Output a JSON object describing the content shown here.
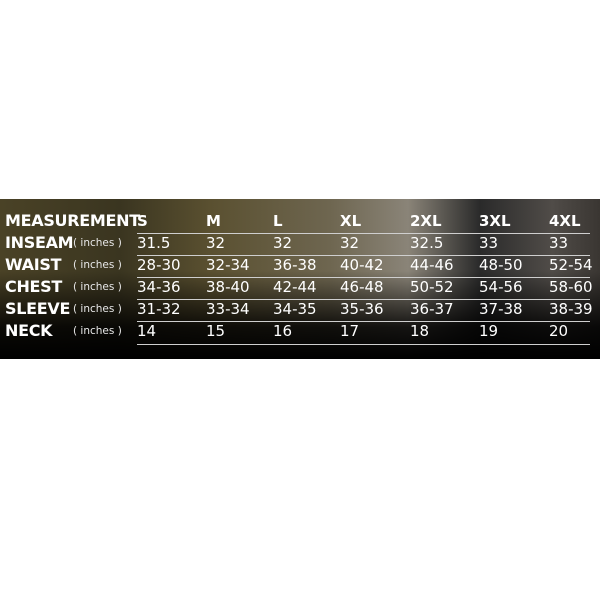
{
  "header": {
    "label": "MEASUREMENT",
    "sizes": [
      "S",
      "M",
      "L",
      "XL",
      "2XL",
      "3XL",
      "4XL"
    ]
  },
  "rows": [
    {
      "label": "INSEAM",
      "unit": "( inches )",
      "values": [
        "31.5",
        "32",
        "32",
        "32",
        "32.5",
        "33",
        "33"
      ]
    },
    {
      "label": "WAIST",
      "unit": "( inches )",
      "values": [
        "28-30",
        "32-34",
        "36-38",
        "40-42",
        "44-46",
        "48-50",
        "52-54"
      ]
    },
    {
      "label": "CHEST",
      "unit": "( inches )",
      "values": [
        "34-36",
        "38-40",
        "42-44",
        "46-48",
        "50-52",
        "54-56",
        "58-60"
      ]
    },
    {
      "label": "SLEEVE",
      "unit": "( inches )",
      "values": [
        "31-32",
        "33-34",
        "34-35",
        "35-36",
        "36-37",
        "37-38",
        "38-39"
      ]
    },
    {
      "label": "NECK",
      "unit": "( inches )",
      "values": [
        "14",
        "15",
        "16",
        "17",
        "18",
        "19",
        "20"
      ]
    }
  ],
  "colors": {
    "background": "#ffffff",
    "band": "#1a1a14",
    "text": "#ffffff",
    "rule": "#cfcfcf"
  }
}
